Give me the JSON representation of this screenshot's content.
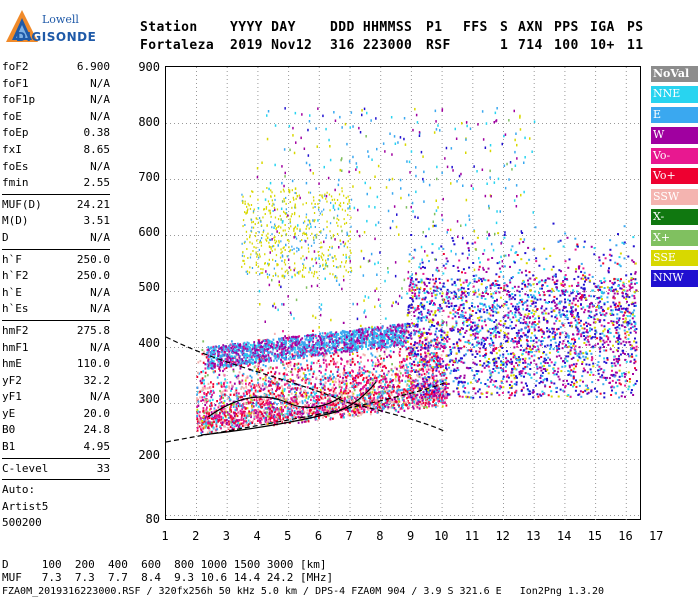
{
  "logo": {
    "line1": "Lowell",
    "line2": "DIGISONDE"
  },
  "header": {
    "row1": [
      "Station",
      "YYYY DAY",
      "DDD HHMMSS",
      "P1",
      "FFS",
      "S",
      "AXN",
      "PPS",
      "IGA",
      "PS"
    ],
    "row2": [
      "Fortaleza",
      "2019 Nov12",
      "316 223000",
      "RSF",
      "",
      "1",
      "714",
      "100",
      "10+",
      "11"
    ]
  },
  "params": {
    "group1": [
      {
        "k": "foF2",
        "v": "6.900"
      },
      {
        "k": "foF1",
        "v": "N/A"
      },
      {
        "k": "foF1p",
        "v": "N/A"
      },
      {
        "k": "foE",
        "v": "N/A"
      },
      {
        "k": "foEp",
        "v": "0.38"
      },
      {
        "k": "fxI",
        "v": "8.65"
      },
      {
        "k": "foEs",
        "v": "N/A"
      },
      {
        "k": "fmin",
        "v": "2.55"
      }
    ],
    "group2": [
      {
        "k": "MUF(D)",
        "v": "24.21"
      },
      {
        "k": "M(D)",
        "v": "3.51"
      },
      {
        "k": "D",
        "v": "N/A"
      }
    ],
    "group3": [
      {
        "k": "h`F",
        "v": "250.0"
      },
      {
        "k": "h`F2",
        "v": "250.0"
      },
      {
        "k": "h`E",
        "v": "N/A"
      },
      {
        "k": "h`Es",
        "v": "N/A"
      }
    ],
    "group4": [
      {
        "k": "hmF2",
        "v": "275.8"
      },
      {
        "k": "hmF1",
        "v": "N/A"
      },
      {
        "k": "hmE",
        "v": "110.0"
      },
      {
        "k": "yF2",
        "v": "32.2"
      },
      {
        "k": "yF1",
        "v": "N/A"
      },
      {
        "k": "yE",
        "v": "20.0"
      },
      {
        "k": "B0",
        "v": "24.8"
      },
      {
        "k": "B1",
        "v": "4.95"
      }
    ],
    "clevel": {
      "k": "C-level",
      "v": "33"
    },
    "auto": [
      "Auto:",
      "Artist5",
      "500200"
    ]
  },
  "axes": {
    "y_ticks": [
      "900",
      "800",
      "700",
      "600",
      "500",
      "400",
      "300",
      "200",
      "80"
    ],
    "x_ticks": [
      "1",
      "2",
      "3",
      "4",
      "5",
      "6",
      "7",
      "8",
      "9",
      "10",
      "11",
      "12",
      "13",
      "14",
      "15",
      "16",
      "17"
    ]
  },
  "legend": [
    {
      "label": "NoVal",
      "color": "#8c8c8c"
    },
    {
      "label": "NNE",
      "color": "#28d4f0"
    },
    {
      "label": "E",
      "color": "#3aa8f0"
    },
    {
      "label": "W",
      "color": "#a000a0"
    },
    {
      "label": "Vo-",
      "color": "#e81890"
    },
    {
      "label": "Vo+",
      "color": "#ee0030"
    },
    {
      "label": "SSW",
      "color": "#f4b4b0"
    },
    {
      "label": "X-",
      "color": "#107810"
    },
    {
      "label": "X+",
      "color": "#80c060"
    },
    {
      "label": "SSE",
      "color": "#d8d800"
    },
    {
      "label": "NNW",
      "color": "#2010d0"
    }
  ],
  "footer": {
    "line1": "D     100  200  400  600  800 1000 1500 3000 [km]",
    "line2": "MUF   7.3  7.3  7.7  8.4  9.3 10.6 14.4 24.2 [MHz]",
    "line3": "FZA0M_2019316223000.RSF / 320fx256h 50 kHz 5.0 km / DPS-4 FZA0M 904 / 3.9 S 321.6 E   Ion2Png 1.3.20"
  }
}
